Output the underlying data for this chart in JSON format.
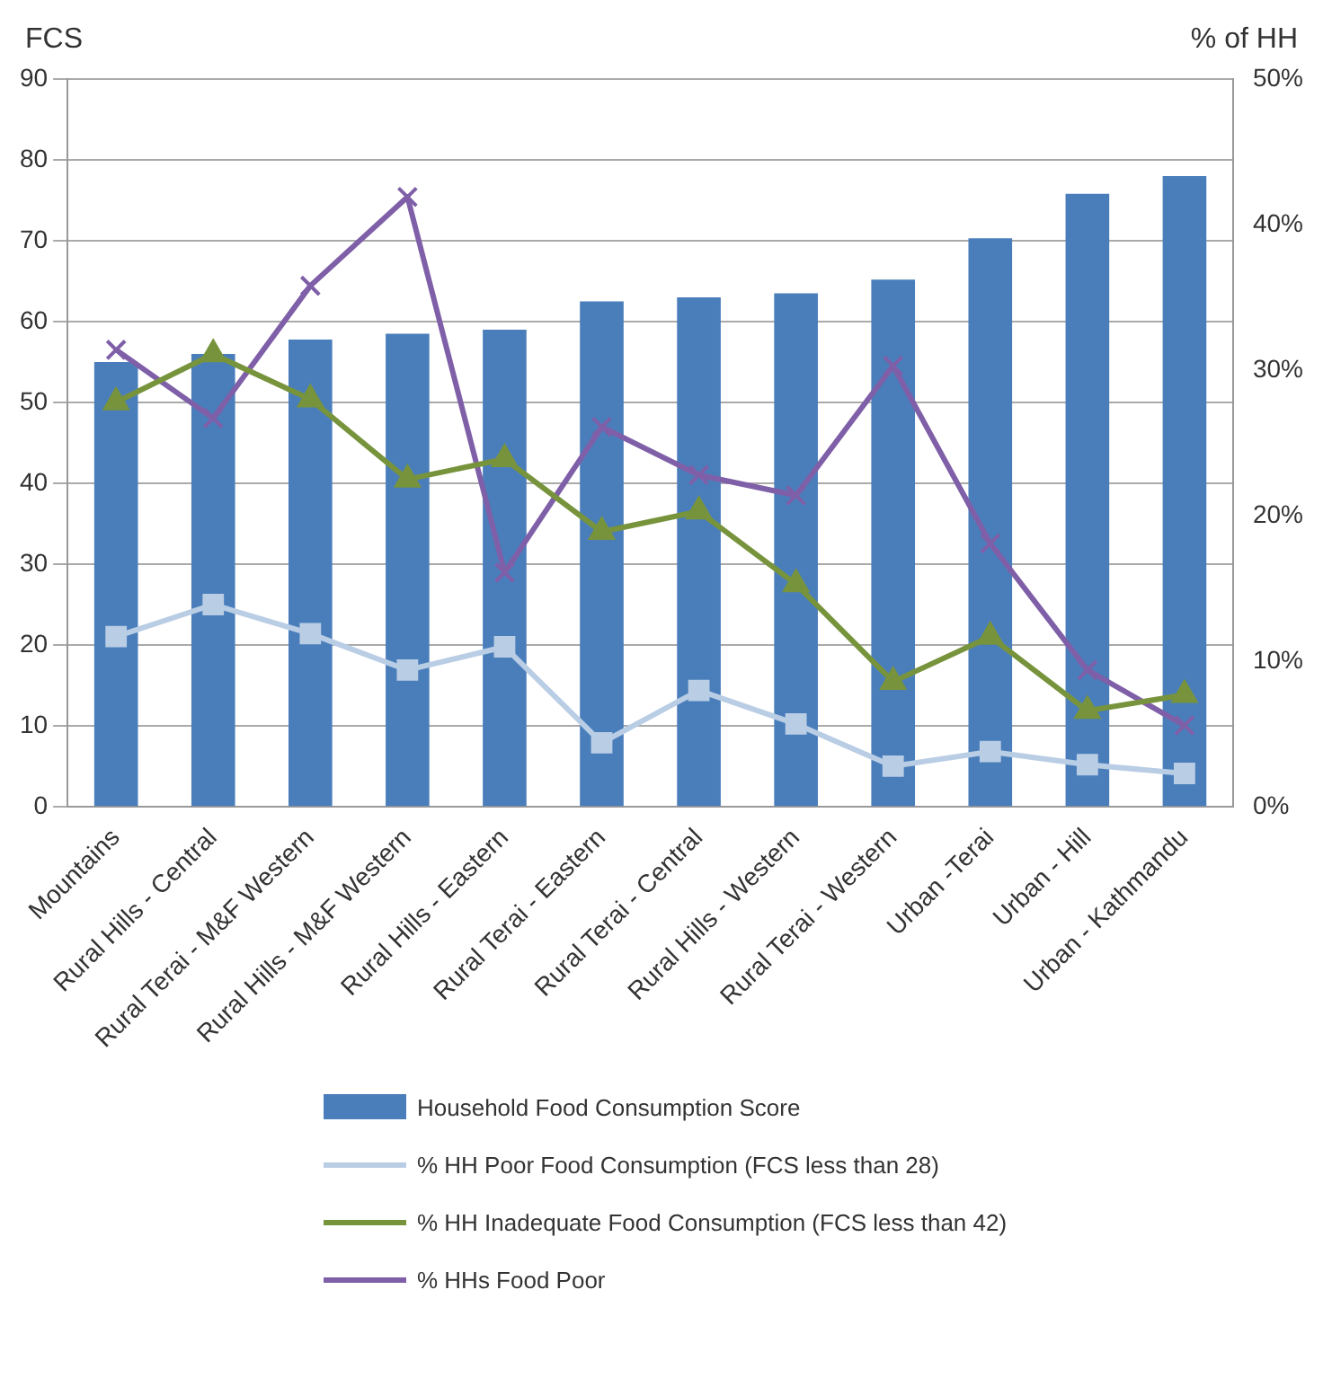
{
  "chart_data": {
    "type": "bar",
    "ylabel": "FCS",
    "y2label": "% of HH",
    "categories": [
      "Mountains",
      "Rural Hills - Central",
      "Rural Terai - M&F Western",
      "Rural Hills - M&F Western",
      "Rural Hills - Eastern",
      "Rural Terai - Eastern",
      "Rural Terai - Central",
      "Rural Hills - Western",
      "Rural Terai - Western",
      "Urban -Terai",
      "Urban - Hill",
      "Urban - Kathmandu"
    ],
    "series": [
      {
        "name": "Household Food Consumption Score",
        "color": "#4a7ebb",
        "values": [
          55,
          56,
          57.8,
          58.5,
          59,
          62.5,
          63,
          63.5,
          65.2,
          70.3,
          75.8,
          78
        ]
      },
      {
        "name": "% HH Poor Food Consumption (FCS less than 28)",
        "type": "line",
        "axis": "y2",
        "marker": "square",
        "color": "#b9cde5",
        "values": [
          11.7,
          13.9,
          11.9,
          9.4,
          11,
          4.4,
          8,
          5.7,
          2.8,
          3.8,
          2.9,
          2.3
        ]
      },
      {
        "name": "% HH Inadequate Food Consumption (FCS less than 42)",
        "type": "line",
        "axis": "y2",
        "marker": "triangle",
        "color": "#77933c",
        "values": [
          27.8,
          31.1,
          28,
          22.5,
          23.9,
          18.9,
          20.3,
          15.3,
          8.6,
          11.7,
          6.6,
          7.7
        ]
      },
      {
        "name": "% HHs Food Poor",
        "type": "line",
        "axis": "y2",
        "marker": "cross",
        "color": "#7f5fa8",
        "values": [
          31.4,
          26.7,
          35.8,
          41.9,
          16.1,
          26.1,
          22.8,
          21.4,
          30.3,
          18.1,
          9.4,
          5.6
        ]
      }
    ],
    "ylim": [
      0,
      90
    ],
    "yticks": [
      0,
      10,
      20,
      30,
      40,
      50,
      60,
      70,
      80,
      90
    ],
    "y2lim": [
      0,
      50
    ],
    "y2ticks": [
      {
        "value": 0,
        "label": "0%"
      },
      {
        "value": 10,
        "label": "10%"
      },
      {
        "value": 20,
        "label": "20%"
      },
      {
        "value": 30,
        "label": "30%"
      },
      {
        "value": 40,
        "label": "40%"
      },
      {
        "value": 50,
        "label": "50%"
      }
    ],
    "grid": "y",
    "legend": "bottom"
  }
}
